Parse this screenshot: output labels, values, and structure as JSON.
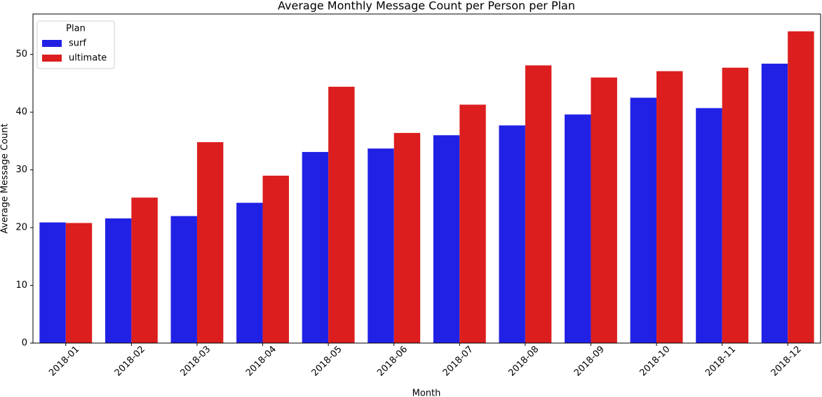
{
  "chart_data": {
    "type": "bar",
    "title": "Average Monthly Message Count per Person per Plan",
    "x_label": "Month",
    "y_label": "Average Message Count",
    "categories": [
      "2018-01",
      "2018-02",
      "2018-03",
      "2018-04",
      "2018-05",
      "2018-06",
      "2018-07",
      "2018-08",
      "2018-09",
      "2018-10",
      "2018-11",
      "2018-12"
    ],
    "series": [
      {
        "name": "surf",
        "color": "#2121e5",
        "values": [
          20.9,
          21.6,
          22.0,
          24.3,
          33.1,
          33.7,
          36.0,
          37.7,
          39.6,
          42.5,
          40.7,
          48.4
        ]
      },
      {
        "name": "ultimate",
        "color": "#dc1e1e",
        "values": [
          20.8,
          25.2,
          34.8,
          29.0,
          44.4,
          36.4,
          41.3,
          48.1,
          46.0,
          47.1,
          47.7,
          54.0
        ]
      }
    ],
    "legend_title": "Plan",
    "legend": "upper left",
    "ylim": [
      0,
      57
    ],
    "yticks": [
      0,
      10,
      20,
      30,
      40,
      50
    ],
    "grid": false
  }
}
